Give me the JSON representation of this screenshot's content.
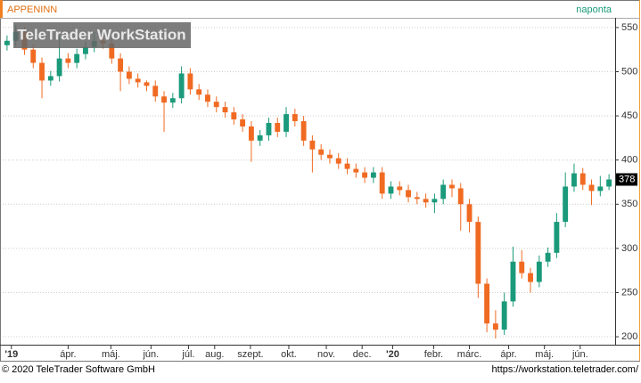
{
  "chart_data": {
    "type": "candlestick",
    "title": "APPENINN",
    "period": "naponta",
    "watermark": "TeleTrader WorkStation",
    "footer_left": "© 2020 TeleTrader Software GmbH",
    "footer_right": "https://workstation.teletrader.com/",
    "up_color": "#1a9a7a",
    "down_color": "#f06a22",
    "grid": true,
    "ylim": [
      193,
      561
    ],
    "yticks": [
      200,
      250,
      300,
      350,
      400,
      450,
      500,
      550
    ],
    "xlim": [
      0,
      70
    ],
    "xticks": [
      {
        "value": 1,
        "label": "'19"
      },
      {
        "value": 7.5,
        "label": "ápr."
      },
      {
        "value": 12.4,
        "label": "máj."
      },
      {
        "value": 17,
        "label": "jún."
      },
      {
        "value": 21.3,
        "label": "júl."
      },
      {
        "value": 24.3,
        "label": "aug."
      },
      {
        "value": 28.4,
        "label": "szept."
      },
      {
        "value": 32.8,
        "label": "okt."
      },
      {
        "value": 37.1,
        "label": "nov."
      },
      {
        "value": 41.2,
        "label": "dec."
      },
      {
        "value": 44.7,
        "label": "'20"
      },
      {
        "value": 49.4,
        "label": "febr."
      },
      {
        "value": 53.5,
        "label": "márc."
      },
      {
        "value": 58,
        "label": "ápr."
      },
      {
        "value": 62.1,
        "label": "máj."
      },
      {
        "value": 66.2,
        "label": "jún."
      }
    ],
    "series": {
      "open": [
        530,
        535,
        545,
        525,
        510,
        490,
        495,
        515,
        510,
        520,
        528,
        535,
        532,
        515,
        500,
        492,
        488,
        484,
        472,
        465,
        470,
        498,
        480,
        474,
        466,
        460,
        454,
        446,
        438,
        422,
        428,
        442,
        432,
        452,
        444,
        422,
        412,
        406,
        402,
        396,
        390,
        386,
        380,
        386,
        362,
        370,
        366,
        358,
        356,
        352,
        356,
        372,
        368,
        350,
        330,
        260,
        215,
        208,
        240,
        285,
        272,
        262,
        285,
        295,
        330,
        370,
        385,
        372,
        365,
        370
      ],
      "high": [
        541,
        553,
        551,
        531,
        516,
        501,
        540,
        521,
        526,
        534,
        545,
        541,
        538,
        521,
        506,
        498,
        490,
        490,
        478,
        476,
        506,
        504,
        486,
        480,
        472,
        466,
        460,
        452,
        444,
        434,
        448,
        448,
        460,
        458,
        450,
        428,
        418,
        412,
        408,
        402,
        396,
        392,
        392,
        392,
        376,
        376,
        372,
        364,
        362,
        362,
        378,
        378,
        374,
        356,
        336,
        266,
        230,
        250,
        302,
        298,
        278,
        292,
        301,
        340,
        386,
        396,
        391,
        378,
        382,
        384
      ],
      "low": [
        524,
        529,
        519,
        504,
        470,
        484,
        489,
        504,
        504,
        514,
        522,
        526,
        509,
        478,
        486,
        482,
        478,
        466,
        432,
        459,
        464,
        474,
        468,
        460,
        454,
        448,
        440,
        432,
        398,
        416,
        422,
        426,
        426,
        438,
        416,
        386,
        400,
        396,
        390,
        384,
        380,
        374,
        374,
        356,
        356,
        360,
        352,
        350,
        346,
        340,
        350,
        358,
        320,
        318,
        244,
        205,
        198,
        202,
        234,
        266,
        250,
        256,
        279,
        289,
        324,
        364,
        366,
        349,
        359,
        366
      ],
      "close": [
        535,
        545,
        525,
        510,
        490,
        495,
        515,
        510,
        520,
        528,
        535,
        532,
        515,
        500,
        492,
        488,
        484,
        472,
        465,
        470,
        498,
        480,
        474,
        466,
        460,
        454,
        446,
        438,
        422,
        428,
        442,
        432,
        452,
        444,
        422,
        412,
        406,
        402,
        396,
        390,
        386,
        380,
        386,
        362,
        370,
        366,
        358,
        356,
        352,
        356,
        372,
        368,
        350,
        330,
        260,
        215,
        208,
        240,
        285,
        272,
        262,
        285,
        295,
        330,
        370,
        385,
        372,
        365,
        370,
        378
      ]
    }
  }
}
